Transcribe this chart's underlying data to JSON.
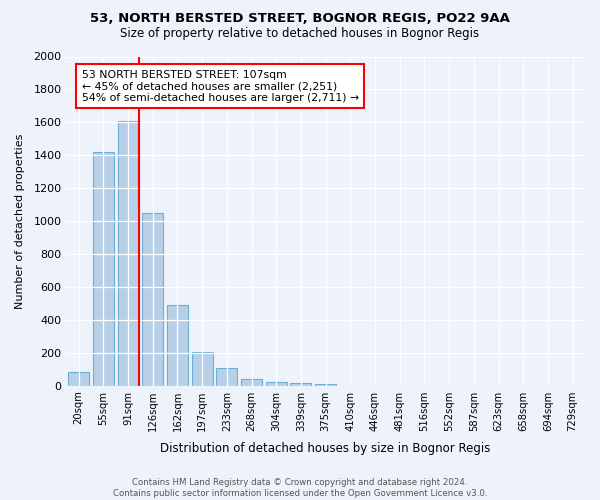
{
  "title1": "53, NORTH BERSTED STREET, BOGNOR REGIS, PO22 9AA",
  "title2": "Size of property relative to detached houses in Bognor Regis",
  "xlabel": "Distribution of detached houses by size in Bognor Regis",
  "ylabel": "Number of detached properties",
  "bar_labels": [
    "20sqm",
    "55sqm",
    "91sqm",
    "126sqm",
    "162sqm",
    "197sqm",
    "233sqm",
    "268sqm",
    "304sqm",
    "339sqm",
    "375sqm",
    "410sqm",
    "446sqm",
    "481sqm",
    "516sqm",
    "552sqm",
    "587sqm",
    "623sqm",
    "658sqm",
    "694sqm",
    "729sqm"
  ],
  "bar_values": [
    80,
    1420,
    1610,
    1050,
    490,
    205,
    105,
    40,
    25,
    15,
    10,
    0,
    0,
    0,
    0,
    0,
    0,
    0,
    0,
    0,
    0
  ],
  "bar_color": "#b8cfe8",
  "bar_edge_color": "#6baed6",
  "red_line_index": 2,
  "annotation_text": "53 NORTH BERSTED STREET: 107sqm\n← 45% of detached houses are smaller (2,251)\n54% of semi-detached houses are larger (2,711) →",
  "annotation_box_color": "white",
  "annotation_box_edge": "red",
  "ylim": [
    0,
    2000
  ],
  "yticks": [
    0,
    200,
    400,
    600,
    800,
    1000,
    1200,
    1400,
    1600,
    1800,
    2000
  ],
  "footer": "Contains HM Land Registry data © Crown copyright and database right 2024.\nContains public sector information licensed under the Open Government Licence v3.0.",
  "bg_color": "#eef2fa",
  "grid_color": "#ffffff"
}
